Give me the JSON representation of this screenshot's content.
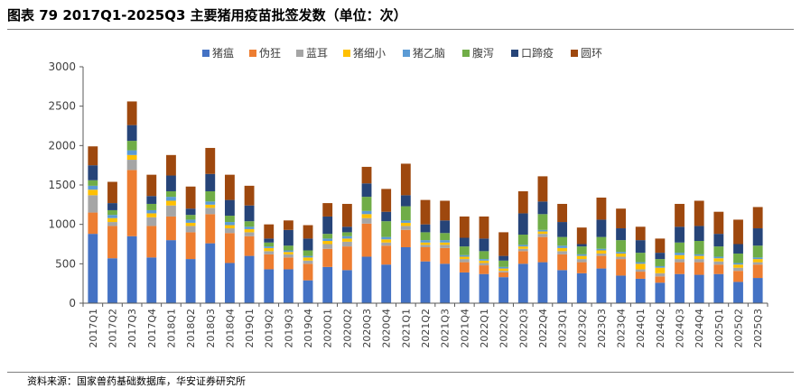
{
  "title": "图表 79 2017Q1-2025Q3 主要猪用疫苗批签发数（单位：次）",
  "source": "资料来源：国家兽药基础数据库，华安证券研究所",
  "chart_data": {
    "type": "bar",
    "stacked": true,
    "title": "图表 79 2017Q1-2025Q3 主要猪用疫苗批签发数（单位：次）",
    "xlabel": "",
    "ylabel": "",
    "ylim": [
      0,
      3000
    ],
    "yticks": [
      0,
      500,
      1000,
      1500,
      2000,
      2500,
      3000
    ],
    "grid": false,
    "legend_position": "top",
    "categories": [
      "2017Q1",
      "2017Q2",
      "2017Q3",
      "2017Q4",
      "2018Q1",
      "2018Q2",
      "2018Q3",
      "2018Q4",
      "2019Q1",
      "2019Q2",
      "2019Q3",
      "2019Q4",
      "2020Q1",
      "2020Q2",
      "2020Q3",
      "2020Q4",
      "2021Q1",
      "2021Q2",
      "2021Q3",
      "2021Q4",
      "2022Q1",
      "2022Q2",
      "2022Q3",
      "2022Q4",
      "2023Q1",
      "2023Q2",
      "2023Q3",
      "2023Q4",
      "2024Q1",
      "2024Q2",
      "2024Q3",
      "2024Q4",
      "2025Q1",
      "2025Q2",
      "2025Q3"
    ],
    "series": [
      {
        "name": "猪瘟",
        "color": "#4472C4",
        "values": [
          880,
          570,
          850,
          580,
          800,
          560,
          760,
          510,
          600,
          430,
          430,
          290,
          460,
          420,
          590,
          490,
          710,
          530,
          500,
          390,
          370,
          330,
          500,
          520,
          420,
          380,
          440,
          350,
          310,
          260,
          370,
          360,
          370,
          270,
          320
        ]
      },
      {
        "name": "伪狂",
        "color": "#ED7D31",
        "values": [
          270,
          410,
          840,
          400,
          300,
          340,
          370,
          380,
          250,
          190,
          150,
          210,
          230,
          300,
          420,
          240,
          220,
          180,
          200,
          130,
          110,
          60,
          160,
          320,
          200,
          140,
          160,
          210,
          90,
          80,
          150,
          160,
          120,
          140,
          170
        ]
      },
      {
        "name": "蓝耳",
        "color": "#A5A5A5",
        "values": [
          220,
          50,
          130,
          110,
          140,
          80,
          80,
          60,
          50,
          40,
          40,
          40,
          60,
          60,
          70,
          40,
          50,
          30,
          40,
          40,
          30,
          20,
          30,
          40,
          40,
          40,
          30,
          30,
          30,
          40,
          40,
          40,
          40,
          40,
          30
        ]
      },
      {
        "name": "猪细小",
        "color": "#FFC000",
        "values": [
          70,
          50,
          60,
          50,
          60,
          40,
          40,
          40,
          40,
          40,
          30,
          40,
          40,
          40,
          50,
          40,
          40,
          30,
          30,
          30,
          30,
          30,
          30,
          30,
          40,
          40,
          40,
          40,
          70,
          70,
          50,
          40,
          40,
          40,
          40
        ]
      },
      {
        "name": "猪乙脑",
        "color": "#5B9BD5",
        "values": [
          50,
          40,
          60,
          40,
          50,
          40,
          40,
          40,
          30,
          20,
          20,
          20,
          30,
          30,
          40,
          30,
          30,
          30,
          30,
          20,
          20,
          20,
          20,
          20,
          30,
          20,
          20,
          20,
          20,
          20,
          30,
          20,
          20,
          20,
          20
        ]
      },
      {
        "name": "腹泻",
        "color": "#70AD47",
        "values": [
          70,
          60,
          120,
          80,
          70,
          60,
          130,
          80,
          70,
          50,
          60,
          70,
          60,
          50,
          180,
          200,
          180,
          100,
          90,
          110,
          100,
          80,
          130,
          200,
          110,
          100,
          150,
          150,
          120,
          90,
          130,
          170,
          130,
          120,
          150
        ]
      },
      {
        "name": "口蹄疫",
        "color": "#264478",
        "values": [
          190,
          90,
          200,
          100,
          200,
          80,
          220,
          200,
          200,
          50,
          200,
          150,
          220,
          70,
          170,
          120,
          140,
          100,
          160,
          110,
          160,
          60,
          270,
          160,
          190,
          30,
          220,
          150,
          160,
          80,
          200,
          190,
          160,
          120,
          220
        ]
      },
      {
        "name": "圆环",
        "color": "#9E480E",
        "values": [
          240,
          270,
          300,
          270,
          260,
          280,
          330,
          320,
          250,
          180,
          120,
          170,
          170,
          290,
          210,
          290,
          400,
          310,
          250,
          270,
          280,
          300,
          280,
          320,
          230,
          210,
          280,
          250,
          170,
          180,
          290,
          320,
          280,
          310,
          270
        ]
      }
    ]
  }
}
